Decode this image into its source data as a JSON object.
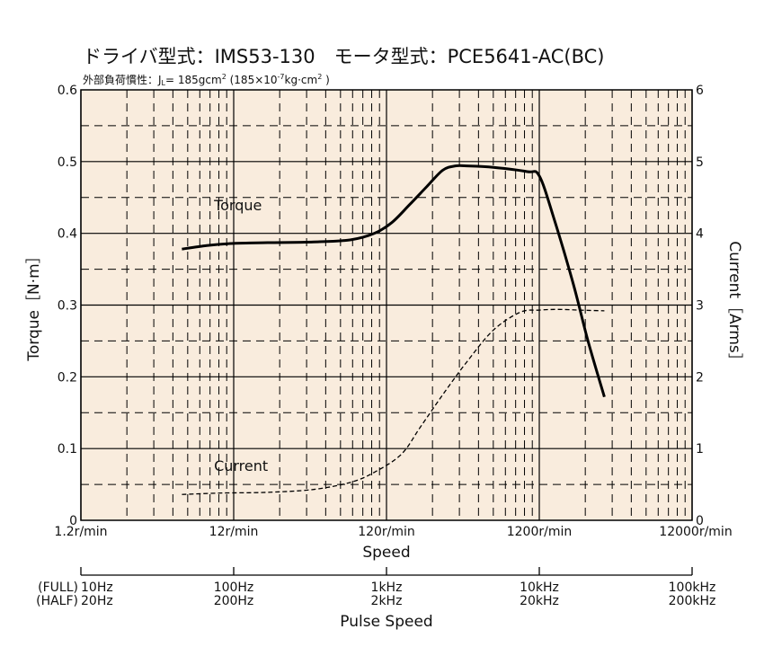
{
  "chart_data": {
    "type": "line",
    "title": "ドライバ型式：IMS53-130　モータ型式：PCE5641-AC(BC)",
    "subtitle": "外部負荷慣性：J",
    "subtitle_sub": "L",
    "subtitle_rest": "= 185gcm",
    "subtitle_sup1": "2",
    "subtitle_rest2": " (185×10",
    "subtitle_sup2": "-7",
    "subtitle_rest3": "kg·cm",
    "subtitle_sup3": "2",
    "subtitle_close": " )",
    "xlabel": "Speed",
    "ylabel": "Torque［N·m］",
    "y2label": "Current［Arms］",
    "x_scale": "log",
    "xlim": [
      1.2,
      12000
    ],
    "ylim": [
      0,
      0.6
    ],
    "y2lim": [
      0,
      6
    ],
    "grid": true,
    "background": "#f9ecdd",
    "x_tick_labels": [
      {
        "value": 1.2,
        "label": "1.2r/min"
      },
      {
        "value": 12,
        "label": "12r/min"
      },
      {
        "value": 120,
        "label": "120r/min"
      },
      {
        "value": 1200,
        "label": "1200r/min"
      },
      {
        "value": 12000,
        "label": "12000r/min"
      }
    ],
    "y_tick_labels": [
      {
        "value": 0,
        "label": "0"
      },
      {
        "value": 0.1,
        "label": "0.1"
      },
      {
        "value": 0.2,
        "label": "0.2"
      },
      {
        "value": 0.3,
        "label": "0.3"
      },
      {
        "value": 0.4,
        "label": "0.4"
      },
      {
        "value": 0.5,
        "label": "0.5"
      },
      {
        "value": 0.6,
        "label": "0.6"
      }
    ],
    "y2_tick_labels": [
      {
        "value": 0,
        "label": "0"
      },
      {
        "value": 1,
        "label": "1"
      },
      {
        "value": 2,
        "label": "2"
      },
      {
        "value": 3,
        "label": "3"
      },
      {
        "value": 4,
        "label": "4"
      },
      {
        "value": 5,
        "label": "5"
      },
      {
        "value": 6,
        "label": "6"
      }
    ],
    "series": [
      {
        "name": "Torque",
        "axis": "left",
        "style": "solid",
        "color": "#000000",
        "x": [
          5.5,
          8,
          12,
          20,
          40,
          70,
          100,
          130,
          170,
          220,
          280,
          340,
          400,
          600,
          1000,
          1200,
          1500,
          2000,
          2500,
          3200
        ],
        "y": [
          0.378,
          0.383,
          0.386,
          0.387,
          0.388,
          0.391,
          0.4,
          0.415,
          0.44,
          0.465,
          0.488,
          0.494,
          0.494,
          0.492,
          0.486,
          0.48,
          0.42,
          0.33,
          0.25,
          0.172
        ]
      },
      {
        "name": "Current",
        "axis": "right",
        "style": "dashed",
        "color": "#000000",
        "x": [
          5.5,
          10,
          20,
          40,
          70,
          100,
          150,
          200,
          280,
          400,
          600,
          900,
          1200,
          1600,
          2200,
          3200
        ],
        "y": [
          0.36,
          0.38,
          0.39,
          0.43,
          0.53,
          0.67,
          0.92,
          1.3,
          1.75,
          2.2,
          2.65,
          2.9,
          2.93,
          2.94,
          2.93,
          2.92
        ]
      }
    ],
    "annotations": [
      {
        "text": "Torque",
        "x": 8,
        "y": 0.432
      },
      {
        "text": "Current",
        "x": 8,
        "y": 0.069
      }
    ],
    "secondary_axis": {
      "label": "Pulse Speed",
      "ticks": [
        {
          "x": 1.2,
          "full": "10Hz",
          "half": "20Hz"
        },
        {
          "x": 12,
          "full": "100Hz",
          "half": "200Hz"
        },
        {
          "x": 120,
          "full": "1kHz",
          "half": "2kHz"
        },
        {
          "x": 1200,
          "full": "10kHz",
          "half": "20kHz"
        },
        {
          "x": 12000,
          "full": "100kHz",
          "half": "200kHz"
        }
      ],
      "row_labels": [
        "(FULL)",
        "(HALF)"
      ]
    }
  }
}
